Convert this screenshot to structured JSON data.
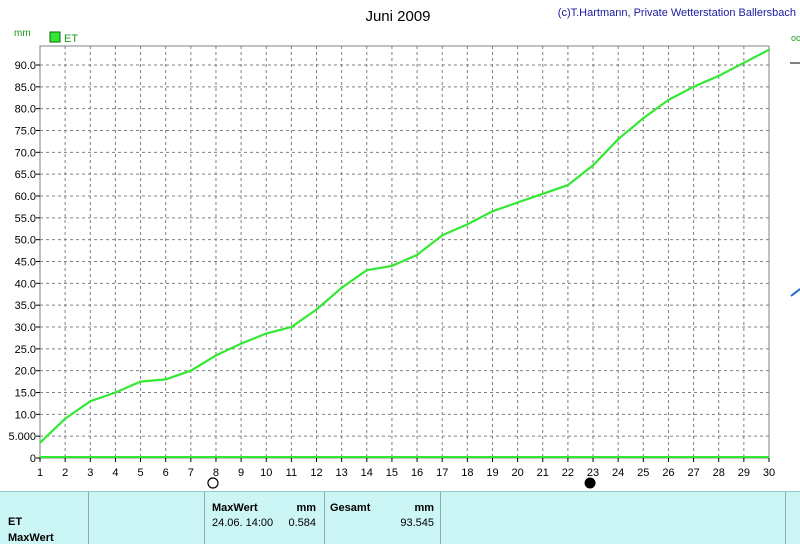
{
  "header": {
    "title": "Juni 2009",
    "copyright": "(c)T.Hartmann, Private Wetterstation Ballersbach",
    "unit": "mm",
    "legend_label": "ET",
    "right_edge_text": "oc"
  },
  "colors": {
    "series": "#33e833",
    "grid": "#808080",
    "text_blue": "#1a1aa0",
    "unit_green": "#1a9a1a",
    "table_bg": "#ccf5f5"
  },
  "chart_data": {
    "type": "line",
    "title": "Juni 2009",
    "ylabel": "mm",
    "xlim": [
      1,
      30
    ],
    "ylim": [
      0,
      93
    ],
    "x_ticks": [
      1,
      2,
      3,
      4,
      5,
      6,
      7,
      8,
      9,
      10,
      11,
      12,
      13,
      14,
      15,
      16,
      17,
      18,
      19,
      20,
      21,
      22,
      23,
      24,
      25,
      26,
      27,
      28,
      29,
      30
    ],
    "y_ticks": [
      "0",
      "5.000",
      "10.0",
      "15.0",
      "20.0",
      "25.0",
      "30.0",
      "35.0",
      "40.0",
      "45.0",
      "50.0",
      "55.0",
      "60.0",
      "65.0",
      "70.0",
      "75.0",
      "80.0",
      "85.0",
      "90.0"
    ],
    "y_tick_values": [
      0,
      5,
      10,
      15,
      20,
      25,
      30,
      35,
      40,
      45,
      50,
      55,
      60,
      65,
      70,
      75,
      80,
      85,
      90
    ],
    "grid": true,
    "legend_position": "top-left",
    "series": [
      {
        "name": "ET",
        "x": [
          1,
          2,
          3,
          4,
          5,
          6,
          7,
          8,
          9,
          10,
          11,
          12,
          13,
          14,
          15,
          16,
          17,
          18,
          19,
          20,
          21,
          22,
          23,
          24,
          25,
          26,
          27,
          28,
          29,
          30
        ],
        "values": [
          3.5,
          9.0,
          13.0,
          15.0,
          17.5,
          18.0,
          20.0,
          23.5,
          26.2,
          28.5,
          30.0,
          34.0,
          39.0,
          43.0,
          44.0,
          46.5,
          51.0,
          53.5,
          56.5,
          58.5,
          60.5,
          62.5,
          67.0,
          73.0,
          77.8,
          82.0,
          85.0,
          87.5,
          90.5,
          93.5
        ]
      }
    ],
    "moon_markers": [
      {
        "x": 8,
        "phase": "full"
      },
      {
        "x": 23,
        "phase": "new"
      }
    ]
  },
  "table": {
    "row_labels": [
      "ET",
      "MaxWert"
    ],
    "maxwert_header": "MaxWert",
    "maxwert_unit": "mm",
    "maxwert_time": "24.06.  14:00",
    "maxwert_value": "0.584",
    "gesamt_header": "Gesamt",
    "gesamt_unit": "mm",
    "gesamt_value": "93.545"
  }
}
